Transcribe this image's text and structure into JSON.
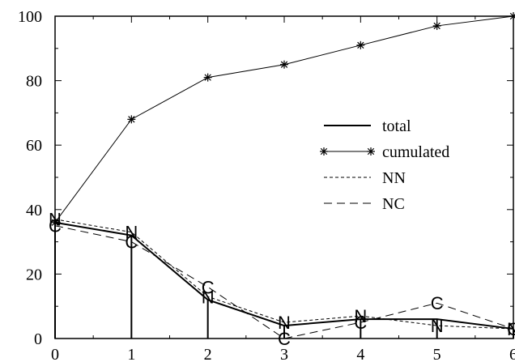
{
  "chart_data": {
    "type": "line",
    "x": [
      0,
      1,
      2,
      3,
      4,
      5,
      6
    ],
    "xlim": [
      0,
      6
    ],
    "ylim": [
      0,
      100
    ],
    "xticks": [
      0,
      1,
      2,
      3,
      4,
      5,
      6
    ],
    "yticks": [
      0,
      20,
      40,
      60,
      80,
      100
    ],
    "title": "",
    "xlabel": "",
    "ylabel": "",
    "grid": false,
    "legend_position": "center-right",
    "series": [
      {
        "name": "total",
        "values": [
          36,
          32,
          12,
          4,
          6,
          6,
          3
        ],
        "style": "solid-bold",
        "impulses": true
      },
      {
        "name": "cumulated",
        "values": [
          36,
          68,
          81,
          85,
          91,
          97,
          100
        ],
        "style": "solid-star"
      },
      {
        "name": "NN",
        "values": [
          37,
          33,
          13,
          5,
          7,
          4,
          3
        ],
        "style": "short-dash",
        "point_marker_text": "N"
      },
      {
        "name": "NC",
        "values": [
          35,
          30,
          16,
          0,
          5,
          11,
          3
        ],
        "style": "long-dash",
        "point_marker_text": "C"
      }
    ]
  }
}
